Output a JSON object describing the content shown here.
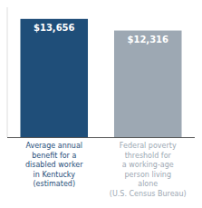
{
  "chart_data": {
    "type": "bar",
    "categories": [
      "Average annual\nbenefit for a\ndisabled worker\nin Kentucky\n(estimated)",
      "Federal poverty\nthreshold for\na working-age\nperson living\nalone\n(U.S. Census Bureau)"
    ],
    "values": [
      13656,
      12316
    ],
    "value_labels": [
      "$13,656",
      "$12,316"
    ],
    "colors": [
      "#1f4e79",
      "#9da8b3"
    ],
    "ylim": [
      0,
      15000
    ],
    "data_labels": true,
    "tick_labels": "x",
    "grid": false
  }
}
